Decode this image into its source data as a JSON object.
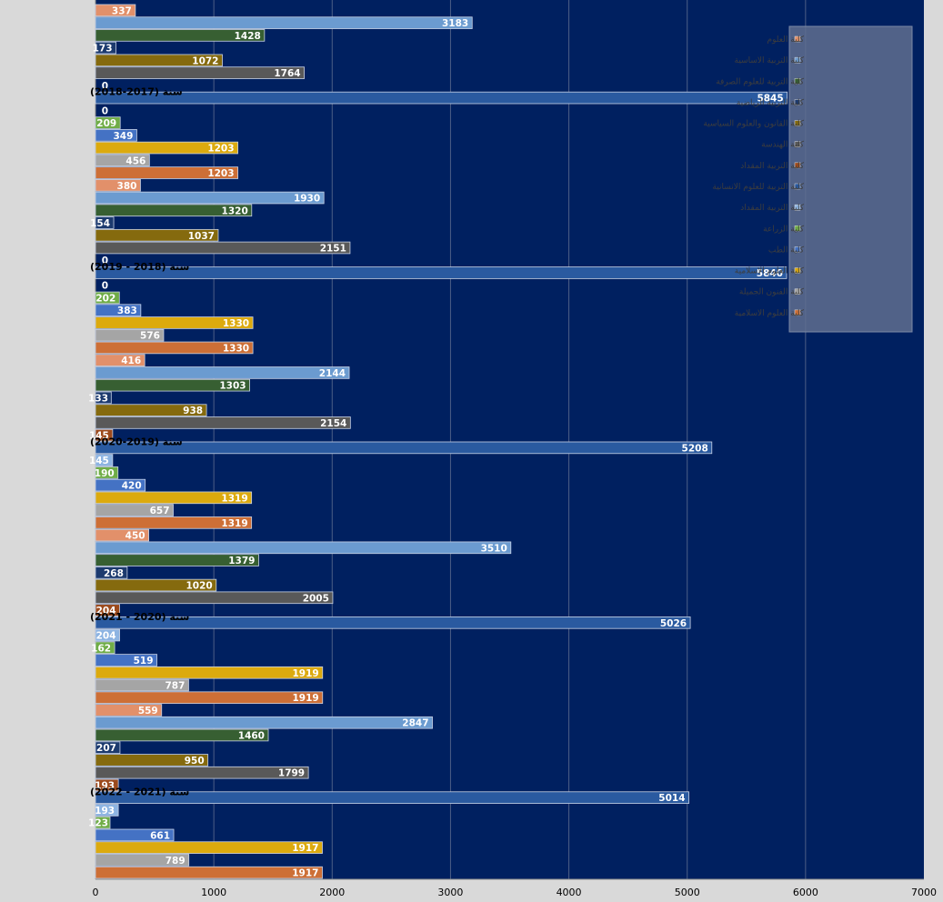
{
  "chart_data": {
    "type": "bar",
    "orientation": "horizontal",
    "title": "",
    "xlabel": "",
    "ylabel": "",
    "xlim": [
      0,
      7000
    ],
    "xticks": [
      0,
      1000,
      2000,
      3000,
      4000,
      5000,
      6000,
      7000
    ],
    "grid": true,
    "legend_position": "top-right",
    "background": "#002060",
    "categories": [
      "سنة (2017-2018)",
      "سنة (2018 - 2019)",
      "سنة (2019-2020)",
      "سنة (2020 - 2021)",
      "سنة (2021 - 2022)"
    ],
    "series": [
      {
        "name": "كلية العلوم",
        "color": "#e2906a",
        "values": [
          337,
          380,
          416,
          450,
          559
        ]
      },
      {
        "name": "كلية التربية الاساسية",
        "color": "#6b9bd0",
        "values": [
          3183,
          1930,
          2144,
          3510,
          2847
        ]
      },
      {
        "name": "كلية التربية للعلوم الصرفة",
        "color": "#375f32",
        "values": [
          1428,
          1320,
          1303,
          1379,
          1460
        ]
      },
      {
        "name": "كلية التربية الرياضية",
        "color": "#1c3a6e",
        "values": [
          173,
          154,
          133,
          268,
          207
        ]
      },
      {
        "name": "كلية القانون والعلوم السياسية",
        "color": "#856a0e",
        "values": [
          1072,
          1037,
          938,
          1020,
          950
        ]
      },
      {
        "name": "كلية الهندسة",
        "color": "#595959",
        "values": [
          1764,
          2151,
          2154,
          2005,
          1799
        ]
      },
      {
        "name": "كلية التربية المقداد",
        "color": "#9c4a1c",
        "values": [
          0,
          0,
          145,
          204,
          193
        ]
      },
      {
        "name": "كلية التربية للعلوم الانسانية",
        "color": "#2a5aa0",
        "values": [
          5845,
          5840,
          5208,
          5026,
          5014
        ]
      },
      {
        "name": "كلية التربية المقداد",
        "color": "#8db4e2",
        "values": [
          0,
          0,
          145,
          204,
          193
        ]
      },
      {
        "name": "كلية الزراعة",
        "color": "#70ad47",
        "values": [
          209,
          202,
          190,
          162,
          123
        ]
      },
      {
        "name": "كلية الطب",
        "color": "#4472c4",
        "values": [
          349,
          383,
          420,
          519,
          661
        ]
      },
      {
        "name": "كلية العلوم الاسلامية",
        "color": "#dcaa0e",
        "values": [
          1203,
          1330,
          1319,
          1919,
          1917
        ]
      },
      {
        "name": "كلية الفنون الجميلة",
        "color": "#a5a5a5",
        "values": [
          456,
          576,
          657,
          787,
          789
        ]
      },
      {
        "name": "كلية العلوم الاسلامية",
        "color": "#cd6f36",
        "values": [
          1203,
          1330,
          1319,
          1919,
          1917
        ]
      }
    ]
  }
}
